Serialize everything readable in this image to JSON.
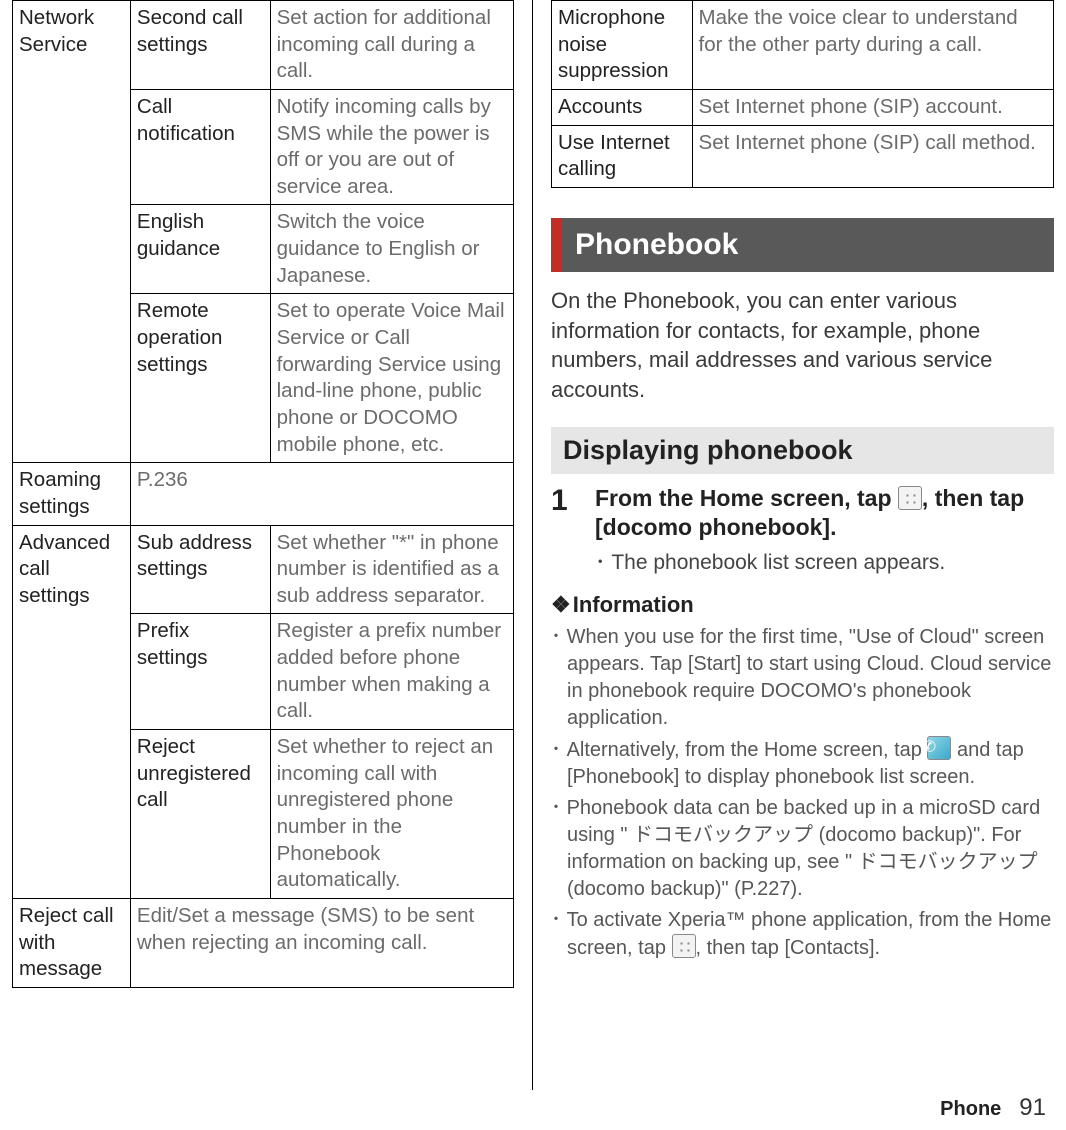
{
  "left_table": {
    "rows": [
      {
        "c1": "Network Service",
        "c1_rowspan": 4,
        "c2": "Second call settings",
        "c3": "Set action for additional incoming call during a call."
      },
      {
        "c2": "Call notification",
        "c3": "Notify incoming calls by SMS while the power is off or you are out of service area."
      },
      {
        "c2": "English guidance",
        "c3": "Switch the voice guidance to English or Japanese."
      },
      {
        "c2": "Remote operation settings",
        "c3": "Set to operate Voice Mail Service or Call forwarding Service using land-line phone, public phone or DOCOMO mobile phone, etc."
      },
      {
        "c1": "Roaming settings",
        "c2_colspan": 2,
        "c2": "P.236"
      },
      {
        "c1": "Advanced call settings",
        "c1_rowspan": 3,
        "c2": "Sub address settings",
        "c3": "Set whether \"*\" in phone number is identified as a sub address separator."
      },
      {
        "c2": "Prefix settings",
        "c3": "Register a prefix number added before phone number when making a call."
      },
      {
        "c2": "Reject unregistered call",
        "c3": "Set whether to reject an incoming call with unregistered phone number in the Phonebook automatically."
      },
      {
        "c1": "Reject call with message",
        "c2_colspan": 2,
        "c2": "Edit/Set a message (SMS) to be sent when rejecting an incoming call."
      }
    ]
  },
  "right_table": {
    "rows": [
      {
        "c1": "Microphone noise suppression",
        "c2": "Make the voice clear to understand for the other party during a call."
      },
      {
        "c1": "Accounts",
        "c2": "Set Internet phone (SIP) account."
      },
      {
        "c1": "Use Internet calling",
        "c2": "Set Internet phone (SIP) call method."
      }
    ]
  },
  "heading": "Phonebook",
  "intro": "On the Phonebook, you can enter various information for contacts, for example, phone numbers, mail addresses and various service accounts.",
  "subheading": "Displaying phonebook",
  "step": {
    "num": "1",
    "title_pre": "From the Home screen, tap ",
    "title_post": ", then tap [docomo phonebook].",
    "sub": "The phonebook list screen appears."
  },
  "info_label": "Information",
  "info": {
    "i1": "When you use for the first time, \"Use of Cloud\" screen appears. Tap [Start] to start using Cloud. Cloud service in phonebook require DOCOMO's phonebook application.",
    "i2_pre": "Alternatively, from the Home screen, tap ",
    "i2_post": " and tap [Phonebook] to display phonebook list screen.",
    "i3": "Phonebook data can be backed up in a microSD card using \" ドコモバックアップ (docomo backup)\". For information on backing up, see \" ドコモバックアップ (docomo backup)\" (P.227).",
    "i4_pre": "To activate Xperia™ phone application, from the Home screen, tap ",
    "i4_post": ", then tap [Contacts]."
  },
  "footer": {
    "category": "Phone",
    "page": "91"
  },
  "colors": {
    "accent": "#c22d26",
    "heading_bg": "#595959",
    "sub_bg": "#e6e6e6",
    "desc_text": "#6b6b6b"
  }
}
